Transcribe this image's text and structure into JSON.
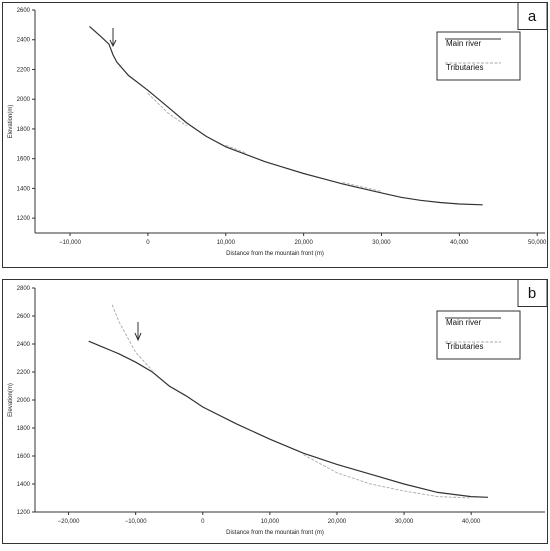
{
  "chart_data": [
    {
      "type": "line",
      "panel": "a",
      "x_label": "Distance from the mountain front (m)",
      "y_label": "Elevation(m)",
      "x": [
        -7500,
        -6000,
        -5000,
        -4500,
        -4000,
        -2500,
        0,
        2500,
        5000,
        7500,
        10000,
        12500,
        15000,
        17500,
        20000,
        22500,
        25000,
        27500,
        30000,
        32500,
        35000,
        37500,
        40000,
        43000
      ],
      "series": [
        {
          "name": "Main river",
          "color": "#333333",
          "values": [
            2490,
            2420,
            2370,
            2300,
            2250,
            2160,
            2060,
            1950,
            1840,
            1750,
            1680,
            1630,
            1580,
            1540,
            1500,
            1465,
            1430,
            1400,
            1370,
            1340,
            1320,
            1305,
            1295,
            1290
          ]
        },
        {
          "name": "Tributaries",
          "color": "#aaaaaa",
          "values": [
            null,
            null,
            null,
            null,
            null,
            null,
            2040,
            1910,
            1820,
            null,
            1690,
            1640,
            null,
            null,
            null,
            null,
            1440,
            1410,
            1380,
            null,
            null,
            null,
            null,
            null
          ]
        }
      ],
      "xlim": [
        -14500,
        51000
      ],
      "ylim": [
        1100,
        2600
      ],
      "xticks": [
        {
          "value": -10000,
          "label": "−10,000"
        },
        0,
        {
          "value": 10000,
          "label": "10,000"
        },
        {
          "value": 20000,
          "label": "20,000"
        },
        {
          "value": 30000,
          "label": "30,000"
        },
        {
          "value": 40000,
          "label": "40,000"
        },
        {
          "value": 50000,
          "label": "50,000"
        }
      ],
      "yticks": [
        1200,
        1400,
        1600,
        1800,
        2000,
        2200,
        2400,
        2600
      ],
      "legend": "top-right"
    },
    {
      "type": "line",
      "panel": "b",
      "x_label": "Distance from the mountain front (m)",
      "y_label": "Elevation(m)",
      "x": [
        -17000,
        -15000,
        -13500,
        -12500,
        -10000,
        -7500,
        -5000,
        -2500,
        0,
        5000,
        10000,
        15000,
        20000,
        25000,
        30000,
        35000,
        40000,
        42500
      ],
      "series": [
        {
          "name": "Main river",
          "color": "#333333",
          "values": [
            2420,
            2380,
            2350,
            2330,
            2270,
            2200,
            2100,
            2030,
            1950,
            1830,
            1720,
            1620,
            1540,
            1470,
            1400,
            1340,
            1310,
            1305
          ]
        },
        {
          "name": "Tributaries",
          "color": "#aaaaaa",
          "values": [
            null,
            null,
            2680,
            2560,
            2340,
            2210,
            null,
            null,
            null,
            1810,
            null,
            1610,
            1480,
            1400,
            1350,
            1310,
            1300,
            null
          ]
        }
      ],
      "xlim": [
        -25000,
        51000
      ],
      "ylim": [
        1200,
        2800
      ],
      "xticks": [
        {
          "value": -20000,
          "label": "−20,000"
        },
        {
          "value": -10000,
          "label": "−10,000"
        },
        0,
        {
          "value": 10000,
          "label": "10,000"
        },
        {
          "value": 20000,
          "label": "20,000"
        },
        {
          "value": 30000,
          "label": "30,000"
        },
        {
          "value": 40000,
          "label": "40,000"
        }
      ],
      "yticks": [
        1200,
        1400,
        1600,
        1800,
        2000,
        2200,
        2400,
        2600,
        2800
      ],
      "legend": "top-right"
    }
  ]
}
